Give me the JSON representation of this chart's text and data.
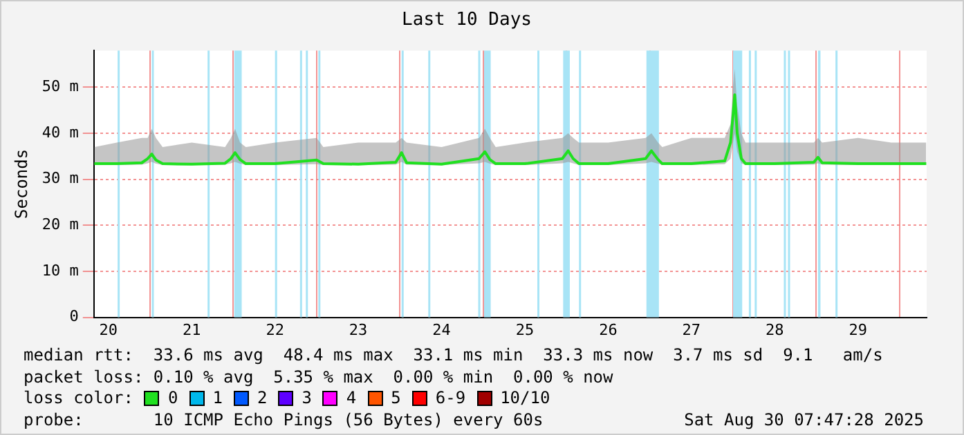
{
  "chart_data": {
    "type": "line",
    "title": "Last 10 Days",
    "ylabel": "Seconds",
    "xlim": [
      20.325,
      30.325
    ],
    "xticks": [
      {
        "value": 20.5,
        "label": "20"
      },
      {
        "value": 21,
        "label": null
      },
      {
        "value": 21.5,
        "label": "21"
      },
      {
        "value": 22,
        "label": null
      },
      {
        "value": 22.5,
        "label": "22"
      },
      {
        "value": 23,
        "label": null
      },
      {
        "value": 23.5,
        "label": "23"
      },
      {
        "value": 24,
        "label": null
      },
      {
        "value": 24.5,
        "label": "24"
      },
      {
        "value": 25,
        "label": null
      },
      {
        "value": 25.5,
        "label": "25"
      },
      {
        "value": 26,
        "label": null
      },
      {
        "value": 26.5,
        "label": "26"
      },
      {
        "value": 27,
        "label": null
      },
      {
        "value": 27.5,
        "label": "27"
      },
      {
        "value": 28,
        "label": null
      },
      {
        "value": 28.5,
        "label": "28"
      },
      {
        "value": 29,
        "label": null
      },
      {
        "value": 29.5,
        "label": "29"
      },
      {
        "value": 30,
        "label": null
      }
    ],
    "ylim": [
      0,
      58
    ],
    "yticks": [
      0,
      {
        "value": 10,
        "label": "10 m"
      },
      {
        "value": 20,
        "label": "20 m"
      },
      {
        "value": 30,
        "label": "30 m"
      },
      {
        "value": 40,
        "label": "40 m"
      },
      {
        "value": 50,
        "label": "50 m"
      }
    ],
    "grid": true,
    "marker": "none",
    "line_style": "solid",
    "legend": "bottom",
    "legend_title": "loss color:",
    "bands": [
      {
        "axis": "x",
        "from": 20.61,
        "to": 20.63,
        "color": "#a8e4f6"
      },
      {
        "axis": "x",
        "from": 21.02,
        "to": 21.04,
        "color": "#a8e4f6"
      },
      {
        "axis": "x",
        "from": 21.69,
        "to": 21.71,
        "color": "#a8e4f6"
      },
      {
        "axis": "x",
        "from": 22.01,
        "to": 22.1,
        "color": "#a8e4f6"
      },
      {
        "axis": "x",
        "from": 22.5,
        "to": 22.52,
        "color": "#a8e4f6"
      },
      {
        "axis": "x",
        "from": 22.8,
        "to": 22.82,
        "color": "#a8e4f6"
      },
      {
        "axis": "x",
        "from": 22.87,
        "to": 22.89,
        "color": "#a8e4f6"
      },
      {
        "axis": "x",
        "from": 23.02,
        "to": 23.04,
        "color": "#a8e4f6"
      },
      {
        "axis": "x",
        "from": 24.02,
        "to": 24.04,
        "color": "#a8e4f6"
      },
      {
        "axis": "x",
        "from": 24.34,
        "to": 24.36,
        "color": "#a8e4f6"
      },
      {
        "axis": "x",
        "from": 24.94,
        "to": 24.96,
        "color": "#a8e4f6"
      },
      {
        "axis": "x",
        "from": 25.01,
        "to": 25.09,
        "color": "#a8e4f6"
      },
      {
        "axis": "x",
        "from": 25.65,
        "to": 25.67,
        "color": "#a8e4f6"
      },
      {
        "axis": "x",
        "from": 25.96,
        "to": 26.04,
        "color": "#a8e4f6"
      },
      {
        "axis": "x",
        "from": 26.15,
        "to": 26.17,
        "color": "#a8e4f6"
      },
      {
        "axis": "x",
        "from": 26.96,
        "to": 27.11,
        "color": "#a8e4f6"
      },
      {
        "axis": "x",
        "from": 28.0,
        "to": 28.11,
        "color": "#a8e4f6"
      },
      {
        "axis": "x",
        "from": 28.19,
        "to": 28.21,
        "color": "#a8e4f6"
      },
      {
        "axis": "x",
        "from": 28.26,
        "to": 28.28,
        "color": "#a8e4f6"
      },
      {
        "axis": "x",
        "from": 28.61,
        "to": 28.63,
        "color": "#a8e4f6"
      },
      {
        "axis": "x",
        "from": 28.66,
        "to": 28.68,
        "color": "#a8e4f6"
      },
      {
        "axis": "x",
        "from": 29.02,
        "to": 29.05,
        "color": "#a8e4f6"
      },
      {
        "axis": "x",
        "from": 29.23,
        "to": 29.25,
        "color": "#a8e4f6"
      }
    ],
    "series": [
      {
        "name": "0",
        "color": "#20e020",
        "x": [
          20.33,
          20.6,
          20.9,
          20.97,
          21.02,
          21.07,
          21.15,
          21.5,
          21.9,
          21.97,
          22.02,
          22.08,
          22.15,
          22.5,
          23.0,
          23.08,
          23.5,
          23.95,
          24.02,
          24.08,
          24.5,
          24.95,
          25.02,
          25.08,
          25.15,
          25.5,
          25.95,
          26.02,
          26.08,
          26.15,
          26.5,
          26.95,
          27.02,
          27.1,
          27.15,
          27.5,
          27.9,
          27.97,
          28.0,
          28.02,
          28.05,
          28.1,
          28.15,
          28.5,
          28.97,
          29.02,
          29.07,
          29.5,
          29.9,
          30.32
        ],
        "values": [
          33.4,
          33.4,
          33.6,
          34.5,
          35.5,
          34.2,
          33.4,
          33.3,
          33.5,
          34.5,
          35.8,
          34.3,
          33.4,
          33.4,
          34.2,
          33.4,
          33.3,
          33.7,
          35.8,
          33.6,
          33.3,
          34.5,
          36,
          34.3,
          33.4,
          33.4,
          34.5,
          36.2,
          34.5,
          33.4,
          33.4,
          34.5,
          36.2,
          34.3,
          33.4,
          33.4,
          34,
          38,
          44,
          48.4,
          40,
          34.5,
          33.4,
          33.4,
          33.7,
          34.8,
          33.6,
          33.4,
          33.4,
          33.4
        ],
        "lower": [
          33.1,
          33.1,
          33.2,
          33.5,
          33.8,
          33.4,
          33.1,
          33.1,
          33.2,
          33.5,
          33.8,
          33.4,
          33.1,
          33.1,
          33.3,
          33.1,
          33.1,
          33.2,
          33.8,
          33.2,
          33.1,
          33.5,
          33.8,
          33.4,
          33.1,
          33.1,
          33.5,
          33.8,
          33.5,
          33.1,
          33.1,
          33.5,
          33.8,
          33.4,
          33.1,
          33.1,
          33.3,
          34.5,
          38,
          40,
          36,
          33.5,
          33.1,
          33.1,
          33.2,
          33.5,
          33.2,
          33.1,
          33.1,
          33.1
        ],
        "upper": [
          37,
          38,
          39,
          39,
          41,
          39,
          37,
          38,
          37,
          39,
          41,
          38,
          37,
          38,
          39,
          37,
          38,
          38,
          39,
          38,
          37,
          39,
          41,
          39,
          37,
          38,
          39,
          40,
          39,
          38,
          38,
          39,
          40,
          38,
          37,
          39,
          39,
          42,
          50,
          54,
          46,
          40,
          38,
          38,
          38,
          39,
          38,
          39,
          38,
          38
        ]
      },
      {
        "name": "1",
        "color": "#00b8ec"
      },
      {
        "name": "2",
        "color": "#0059ff"
      },
      {
        "name": "3",
        "color": "#5e00ff"
      },
      {
        "name": "4",
        "color": "#ff00ff"
      },
      {
        "name": "5",
        "color": "#ff5500"
      },
      {
        "name": "6-9",
        "color": "#ff0000"
      },
      {
        "name": "10/10",
        "color": "#a10000"
      }
    ],
    "annotations": [
      "median rtt:  33.6 ms avg  48.4 ms max  33.1 ms min  33.3 ms now  3.7 ms sd  9.1   am/s",
      "packet loss: 0.10 % avg  5.35 % max  0.00 % min  0.00 % now",
      "probe:       10 ICMP Echo Pings (56 Bytes) every 60s",
      "Sat Aug 30 07:47:28 2025"
    ]
  }
}
